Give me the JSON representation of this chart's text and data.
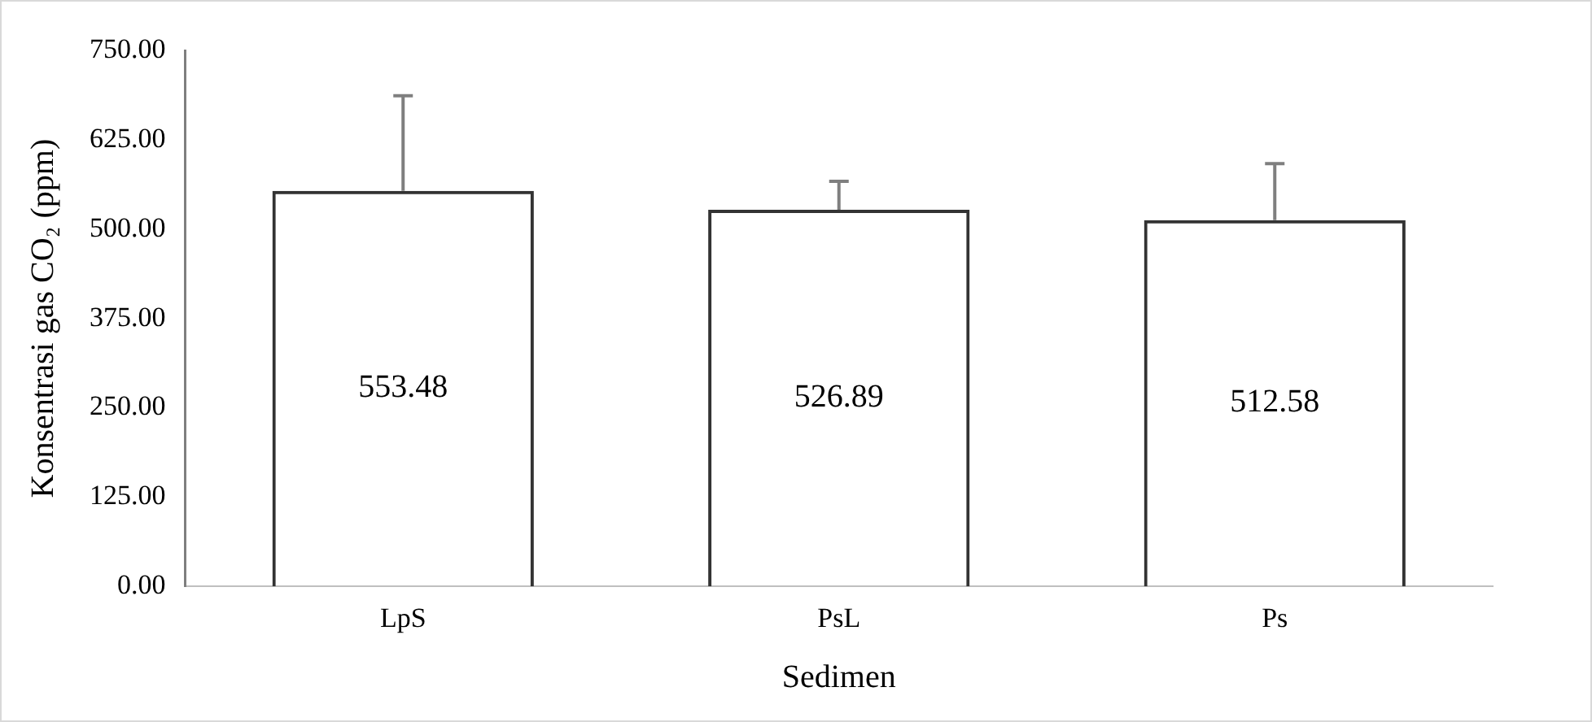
{
  "chart_data": {
    "type": "bar",
    "xlabel": "Sedimen",
    "ylabel": "Konsentrasi gas CO₂ (ppm)",
    "categories": [
      "LpS",
      "PsL",
      "Ps"
    ],
    "values": [
      553.48,
      526.89,
      512.58
    ],
    "errors": [
      [
        553.48,
        686.48
      ],
      [
        526.89,
        566.89
      ],
      [
        512.58,
        591.58
      ]
    ],
    "color": "#333333",
    "ylim": [
      0,
      750
    ],
    "yticks": [
      {
        "value": 0,
        "label": "0.00"
      },
      {
        "value": 125,
        "label": "125.00"
      },
      {
        "value": 250,
        "label": "250.00"
      },
      {
        "value": 375,
        "label": "375.00"
      },
      {
        "value": 500,
        "label": "500.00"
      },
      {
        "value": 625,
        "label": "625.00"
      },
      {
        "value": 750,
        "label": "750.00"
      }
    ],
    "data_labels": true,
    "grid": false,
    "legend": false
  }
}
